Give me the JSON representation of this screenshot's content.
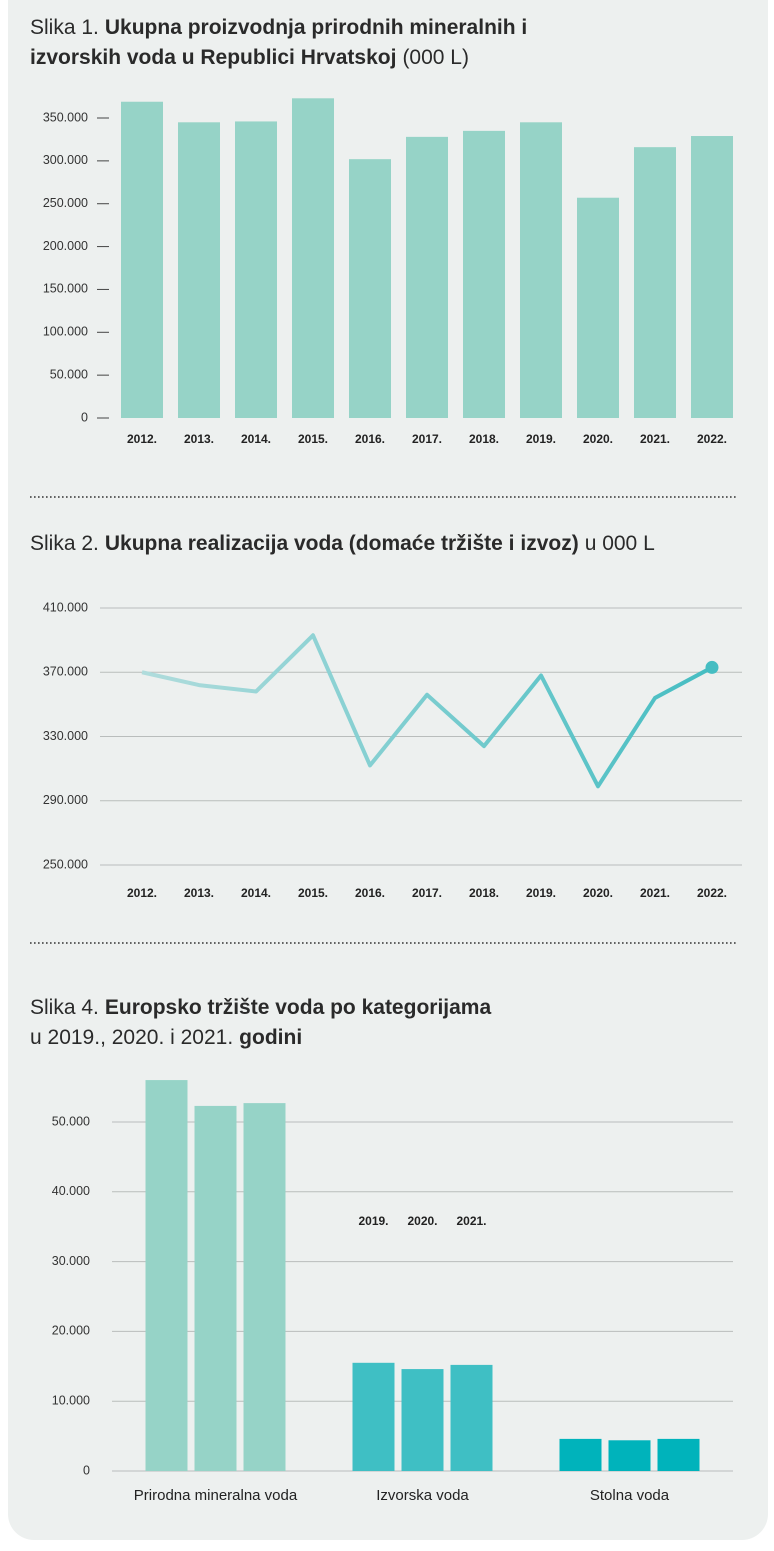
{
  "chart_data": [
    {
      "type": "bar",
      "title_lines": [
        [
          {
            "text": "Slika 1.",
            "bold": false
          },
          {
            "text": "Ukupna proizvodnja prirodnih mineralnih i",
            "bold": true
          }
        ],
        [
          {
            "text": "izvorskih voda u Republici Hrvatskoj",
            "bold": true
          },
          {
            "text": "(000 L)",
            "bold": false
          }
        ]
      ],
      "categories": [
        "2012.",
        "2013.",
        "2014.",
        "2015.",
        "2016.",
        "2017.",
        "2018.",
        "2019.",
        "2020.",
        "2021.",
        "2022."
      ],
      "values": [
        369000,
        345000,
        346000,
        373000,
        302000,
        328000,
        335000,
        345000,
        257000,
        316000,
        329000
      ],
      "color": "#96d3c7",
      "ylim": [
        0,
        380000
      ],
      "yticks": [
        0,
        {
          "value": 50000,
          "label": "50.000"
        },
        {
          "value": 100000,
          "label": "100.000"
        },
        {
          "value": 150000,
          "label": "150.000"
        },
        {
          "value": 200000,
          "label": "200.000"
        },
        {
          "value": 250000,
          "label": "250.000"
        },
        {
          "value": 300000,
          "label": "300.000"
        },
        {
          "value": 350000,
          "label": "350.000"
        }
      ],
      "grid": false
    },
    {
      "type": "line",
      "title_lines": [
        [
          {
            "text": "Slika 2.",
            "bold": false
          },
          {
            "text": "Ukupna realizacija voda (domaće tržište i izvoz)",
            "bold": true
          },
          {
            "text": "u 000 L",
            "bold": false
          }
        ]
      ],
      "categories": [
        "2012.",
        "2013.",
        "2014.",
        "2015.",
        "2016.",
        "2017.",
        "2018.",
        "2019.",
        "2020.",
        "2021.",
        "2022."
      ],
      "values": [
        370000,
        362000,
        358000,
        393000,
        312000,
        356000,
        324000,
        368000,
        299000,
        354000,
        373000
      ],
      "colors": [
        "#b0dcdc",
        "#45bdc2"
      ],
      "highlight_last": true,
      "ylim": [
        250000,
        410000
      ],
      "yticks": [
        {
          "value": 250000,
          "label": "250.000"
        },
        {
          "value": 290000,
          "label": "290.000"
        },
        {
          "value": 330000,
          "label": "330.000"
        },
        {
          "value": 370000,
          "label": "370.000"
        },
        {
          "value": 410000,
          "label": "410.000"
        }
      ],
      "grid": true
    },
    {
      "type": "bar",
      "title_lines": [
        [
          {
            "text": "Slika 4.",
            "bold": false
          },
          {
            "text": "Europsko tržište voda po kategorijama",
            "bold": true
          }
        ],
        [
          {
            "text": "u 2019., 2020. i 2021.",
            "bold": false
          },
          {
            "text": "godini",
            "bold": true
          }
        ]
      ],
      "categories": [
        "Prirodna mineralna voda",
        "Izvorska voda",
        "Stolna voda"
      ],
      "category_colors": [
        "#96d3c7",
        "#3fbfc4",
        "#00b3bb"
      ],
      "series": [
        {
          "name": "2019.",
          "values": [
            56000,
            15500,
            4600
          ]
        },
        {
          "name": "2020.",
          "values": [
            52300,
            14600,
            4400
          ]
        },
        {
          "name": "2021.",
          "values": [
            52700,
            15200,
            4600
          ]
        }
      ],
      "ylim": [
        0,
        57000
      ],
      "yticks": [
        0,
        {
          "value": 10000,
          "label": "10.000"
        },
        {
          "value": 20000,
          "label": "20.000"
        },
        {
          "value": 30000,
          "label": "30.000"
        },
        {
          "value": 40000,
          "label": "40.000"
        },
        {
          "value": 50000,
          "label": "50.000"
        }
      ],
      "grid": true
    }
  ]
}
